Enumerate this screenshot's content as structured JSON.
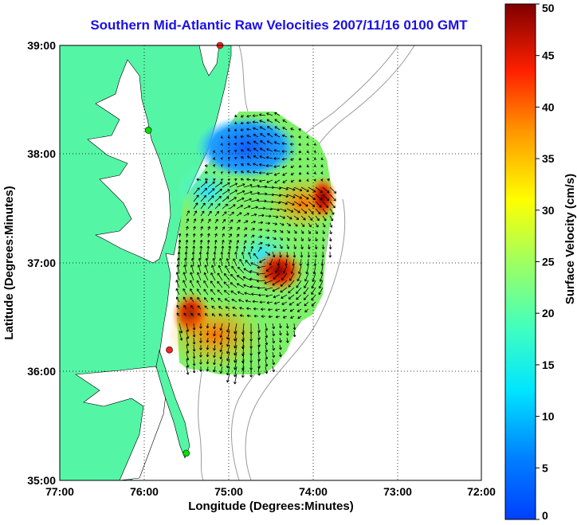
{
  "title": "Southern Mid-Atlantic Raw Velocities 2007/11/16 0100 GMT",
  "map": {
    "xlabel": "Longitude (Degrees:Minutes)",
    "ylabel": "Latitude (Degrees:Minutes)",
    "xticks": [
      "77:00",
      "76:00",
      "75:00",
      "74:00",
      "73:00",
      "72:00"
    ],
    "yticks": [
      "39:00",
      "38:00",
      "37:00",
      "36:00",
      "35:00"
    ],
    "lon_range": [
      -77,
      -72
    ],
    "lat_range": [
      35,
      39
    ],
    "grid": "dotted",
    "colors": {
      "land": "#55f5a6",
      "bathymetry": "#9a9a9a",
      "vectors": "#000000",
      "stations": [
        "#00e000",
        "#ff2020"
      ]
    }
  },
  "colorbar": {
    "label": "Surface Velocity (cm/s)",
    "ticks": [
      "0",
      "5",
      "10",
      "15",
      "20",
      "25",
      "30",
      "35",
      "40",
      "45",
      "50"
    ],
    "range": [
      0,
      50
    ],
    "colormap": "jet"
  },
  "stations": [
    {
      "lon": -75.1,
      "lat": 39.0,
      "color": "#ff2020",
      "icon": "station-red-icon"
    },
    {
      "lon": -75.95,
      "lat": 38.22,
      "color": "#00e000",
      "icon": "station-green-icon"
    },
    {
      "lon": -75.7,
      "lat": 36.2,
      "color": "#ff2020",
      "icon": "station-red-icon"
    },
    {
      "lon": -75.5,
      "lat": 35.25,
      "color": "#00e000",
      "icon": "station-green-icon"
    }
  ]
}
